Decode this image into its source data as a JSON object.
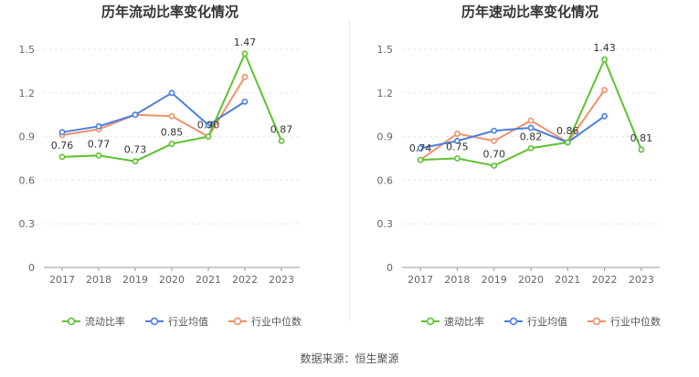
{
  "source_text": "数据来源：恒生聚源",
  "chart_data": [
    {
      "type": "line",
      "title": "历年流动比率变化情况",
      "categories": [
        "2017",
        "2018",
        "2019",
        "2020",
        "2021",
        "2022",
        "2023"
      ],
      "yticks": [
        "0",
        "0.3",
        "0.6",
        "0.9",
        "1.2",
        "1.5"
      ],
      "ylim": [
        0,
        1.5
      ],
      "xlabel": "",
      "ylabel": "",
      "grid": "horizontal",
      "legend_position": "bottom",
      "series": [
        {
          "name": "流动比率",
          "color": "#5cc230",
          "values": [
            0.76,
            0.77,
            0.73,
            0.85,
            0.9,
            1.47,
            0.87
          ],
          "labels": [
            "0.76",
            "0.77",
            "0.73",
            "0.85",
            "0.90",
            "1.47",
            "0.87"
          ]
        },
        {
          "name": "行业均值",
          "color": "#4a7fdc",
          "values": [
            0.93,
            0.97,
            1.05,
            1.2,
            0.98,
            1.14,
            null
          ]
        },
        {
          "name": "行业中位数",
          "color": "#f0906a",
          "values": [
            0.91,
            0.95,
            1.05,
            1.04,
            0.9,
            1.31,
            null
          ]
        }
      ]
    },
    {
      "type": "line",
      "title": "历年速动比率变化情况",
      "categories": [
        "2017",
        "2018",
        "2019",
        "2020",
        "2021",
        "2022",
        "2023"
      ],
      "yticks": [
        "0",
        "0.3",
        "0.6",
        "0.9",
        "1.2",
        "1.5"
      ],
      "ylim": [
        0,
        1.5
      ],
      "xlabel": "",
      "ylabel": "",
      "grid": "horizontal",
      "legend_position": "bottom",
      "series": [
        {
          "name": "速动比率",
          "color": "#5cc230",
          "values": [
            0.74,
            0.75,
            0.7,
            0.82,
            0.86,
            1.43,
            0.81
          ],
          "labels": [
            "0.74",
            "0.75",
            "0.70",
            "0.82",
            "0.86",
            "1.43",
            "0.81"
          ]
        },
        {
          "name": "行业均值",
          "color": "#4a7fdc",
          "values": [
            0.82,
            0.87,
            0.94,
            0.96,
            0.86,
            1.04,
            null
          ]
        },
        {
          "name": "行业中位数",
          "color": "#f0906a",
          "values": [
            0.74,
            0.92,
            0.87,
            1.01,
            0.86,
            1.22,
            null
          ]
        }
      ]
    }
  ]
}
